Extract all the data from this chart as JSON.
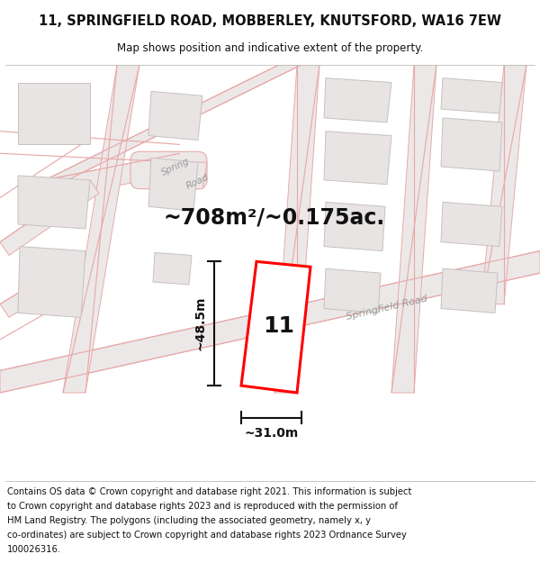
{
  "title": "11, SPRINGFIELD ROAD, MOBBERLEY, KNUTSFORD, WA16 7EW",
  "subtitle": "Map shows position and indicative extent of the property.",
  "footer_lines": [
    "Contains OS data © Crown copyright and database right 2021. This information is subject",
    "to Crown copyright and database rights 2023 and is reproduced with the permission of",
    "HM Land Registry. The polygons (including the associated geometry, namely x, y",
    "co-ordinates) are subject to Crown copyright and database rights 2023 Ordnance Survey",
    "100026316."
  ],
  "area_label": "~708m²/~0.175ac.",
  "width_label": "~31.0m",
  "height_label": "~48.5m",
  "number_label": "11",
  "map_bg": "#f9f7f7",
  "road_line_color": "#e8aaaa",
  "road_fill_color": "#ede8e8",
  "building_fill": "#e8e4e4",
  "building_edge": "#c8c0c0",
  "highlight_stroke": "#ff0000",
  "highlight_fill": "#ffffff",
  "dim_color": "#111111",
  "text_color": "#111111",
  "road_label_color": "#999999",
  "title_fontsize": 10.5,
  "subtitle_fontsize": 8.5,
  "footer_fontsize": 7.2,
  "area_fontsize": 17,
  "number_fontsize": 18,
  "dim_fontsize": 10,
  "road_label_fontsize": 8
}
